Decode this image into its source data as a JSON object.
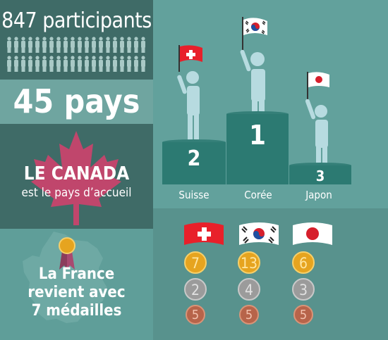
{
  "participants": {
    "text": "847 participants",
    "icon": "person-icon"
  },
  "countries": {
    "text": "45 pays"
  },
  "host": {
    "line1": "LE CANADA",
    "line2": "est le pays d’accueil",
    "icon": "maple-leaf-icon"
  },
  "france": {
    "text_lines": [
      "La France",
      "revient avec",
      "7 médailles"
    ],
    "icon": "france-map-medal-icon"
  },
  "podium": [
    {
      "rank": "2",
      "country": "Suisse",
      "flag": "switzerland-flag"
    },
    {
      "rank": "1",
      "country": "Corée",
      "flag": "south-korea-flag"
    },
    {
      "rank": "3",
      "country": "Japon",
      "flag": "japan-flag"
    }
  ],
  "medals": [
    {
      "country_flag": "switzerland-flag",
      "gold": "7",
      "silver": "2",
      "bronze": "5"
    },
    {
      "country_flag": "south-korea-flag",
      "gold": "13",
      "silver": "4",
      "bronze": "5"
    },
    {
      "country_flag": "japan-flag",
      "gold": "6",
      "silver": "3",
      "bronze": "5"
    }
  ],
  "colors": {
    "dark_teal": "#3f6b67",
    "teal": "#5f9e99",
    "podium": "#2c7a72",
    "figure": "#b7dbe0",
    "maple": "#c0466c",
    "swiss_red": "#e8202a",
    "japan_red": "#d61f2c"
  }
}
